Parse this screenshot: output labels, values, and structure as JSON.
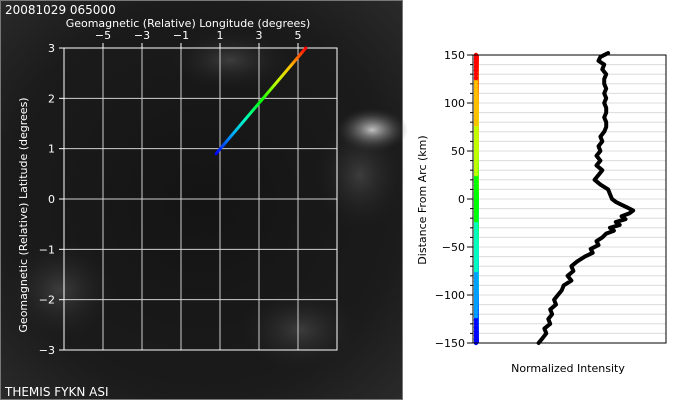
{
  "timestamp": "20081029 065000",
  "footer_label": "THEMIS FYKN ASI",
  "chart_data": [
    {
      "type": "line",
      "xlabel": "Geomagnetic (Relative) Longitude (degrees)",
      "ylabel": "Geomagnetic (Relative) Latitude (degrees)",
      "xlim": [
        -7,
        7
      ],
      "ylim": [
        -3,
        3
      ],
      "x_ticks": [
        -5,
        -3,
        -1,
        1,
        3,
        5
      ],
      "y_ticks": [
        3,
        2,
        1,
        0,
        -1,
        -2,
        -3
      ],
      "grid": true,
      "background": "all-sky camera image",
      "series": [
        {
          "x": [
            0.8,
            5.4
          ],
          "y": [
            0.9,
            3.0
          ],
          "color_scale": [
            "#0000ff",
            "#00a0ff",
            "#00ffc0",
            "#00ff00",
            "#c0ff00",
            "#ffc000",
            "#ff0000"
          ]
        }
      ]
    },
    {
      "type": "line",
      "xlabel": "Normalized Intensity",
      "ylabel": "Distance From Arc (km)",
      "ylim": [
        -150,
        150
      ],
      "y_ticks": [
        150,
        100,
        50,
        0,
        -50,
        -100,
        -150
      ],
      "grid": true,
      "color_scale": [
        "#0000ff",
        "#00a0ff",
        "#00ffc0",
        "#00ff00",
        "#c0ff00",
        "#ffc000",
        "#ff0000"
      ],
      "series": [
        {
          "distance_km": [
            152,
            148,
            144,
            140,
            135,
            130,
            125,
            120,
            115,
            110,
            105,
            100,
            95,
            90,
            85,
            80,
            75,
            70,
            65,
            60,
            55,
            50,
            45,
            40,
            35,
            30,
            25,
            20,
            15,
            10,
            5,
            0,
            -3,
            -6,
            -9,
            -12,
            -15,
            -18,
            -21,
            -24,
            -27,
            -30,
            -33,
            -36,
            -40,
            -44,
            -48,
            -52,
            -56,
            -60,
            -65,
            -70,
            -75,
            -80,
            -85,
            -90,
            -95,
            -100,
            -105,
            -110,
            -115,
            -120,
            -125,
            -130,
            -135,
            -140,
            -145,
            -150
          ],
          "intensity": [
            0.7,
            0.66,
            0.65,
            0.68,
            0.67,
            0.69,
            0.68,
            0.68,
            0.69,
            0.68,
            0.69,
            0.68,
            0.69,
            0.69,
            0.68,
            0.69,
            0.69,
            0.68,
            0.66,
            0.67,
            0.65,
            0.66,
            0.64,
            0.66,
            0.64,
            0.67,
            0.65,
            0.63,
            0.66,
            0.7,
            0.71,
            0.72,
            0.74,
            0.77,
            0.8,
            0.83,
            0.81,
            0.77,
            0.79,
            0.74,
            0.76,
            0.71,
            0.73,
            0.69,
            0.67,
            0.64,
            0.65,
            0.61,
            0.62,
            0.58,
            0.54,
            0.51,
            0.52,
            0.49,
            0.51,
            0.47,
            0.46,
            0.44,
            0.42,
            0.43,
            0.4,
            0.41,
            0.39,
            0.4,
            0.37,
            0.38,
            0.36,
            0.34
          ]
        }
      ]
    }
  ]
}
